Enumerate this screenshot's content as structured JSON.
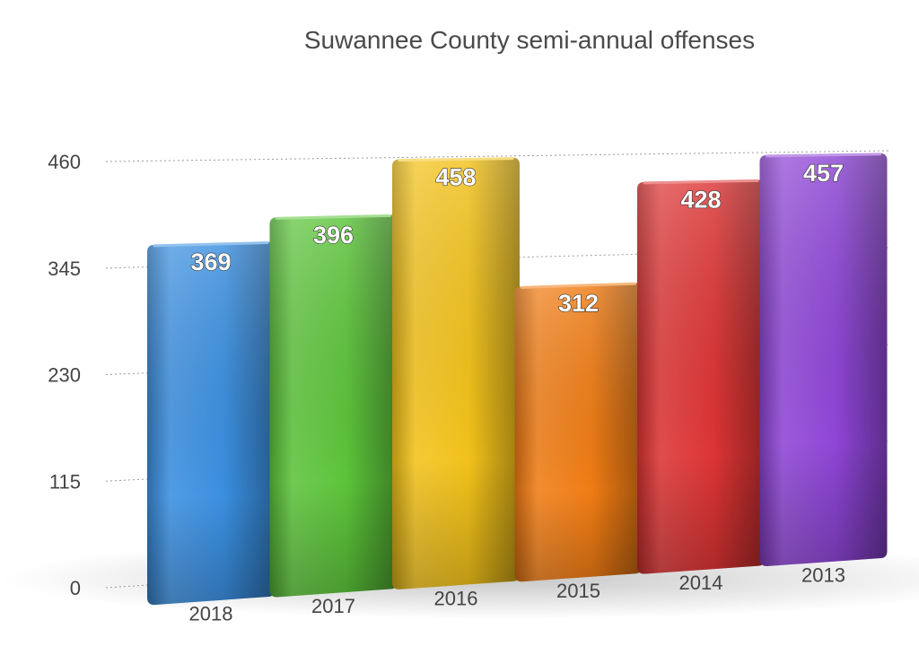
{
  "chart_data": {
    "type": "bar",
    "title": "Suwannee County semi-annual offenses",
    "xlabel": "",
    "ylabel": "",
    "categories": [
      "2018",
      "2017",
      "2016",
      "2015",
      "2014",
      "2013"
    ],
    "values": [
      369,
      396,
      458,
      312,
      428,
      457
    ],
    "yticks": [
      "0",
      "115",
      "230",
      "345",
      "460"
    ],
    "ylim": [
      0,
      460
    ],
    "grid": true,
    "legend": "none",
    "colors": [
      "#3a8fe0",
      "#5cc43a",
      "#f2c21a",
      "#f07c14",
      "#dd3434",
      "#8e45d6"
    ]
  }
}
